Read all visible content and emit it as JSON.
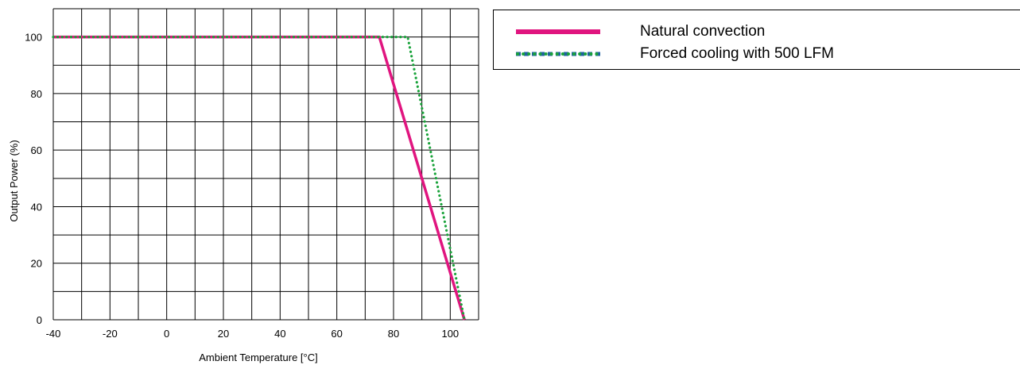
{
  "chart_data": {
    "type": "line",
    "title": "",
    "xlabel": "Ambient Temperature [°C]",
    "ylabel": "Output Power (%)",
    "xlim": [
      -40,
      110
    ],
    "ylim": [
      0,
      110
    ],
    "x_ticks": [
      -40,
      -20,
      0,
      20,
      40,
      60,
      80,
      100
    ],
    "y_ticks": [
      0,
      20,
      40,
      60,
      80,
      100
    ],
    "grid": true,
    "grid_step_x": 10,
    "grid_step_y": 10,
    "legend_position": "right",
    "series": [
      {
        "name": "Natural convection",
        "color": "#e0157f",
        "style": "solid",
        "x": [
          -40,
          75,
          105
        ],
        "y": [
          100,
          100,
          0
        ]
      },
      {
        "name": "Forced cooling with 500 LFM",
        "color": "#1aa33b",
        "style": "dotted",
        "x": [
          -40,
          85,
          105
        ],
        "y": [
          100,
          100,
          0
        ]
      }
    ]
  }
}
